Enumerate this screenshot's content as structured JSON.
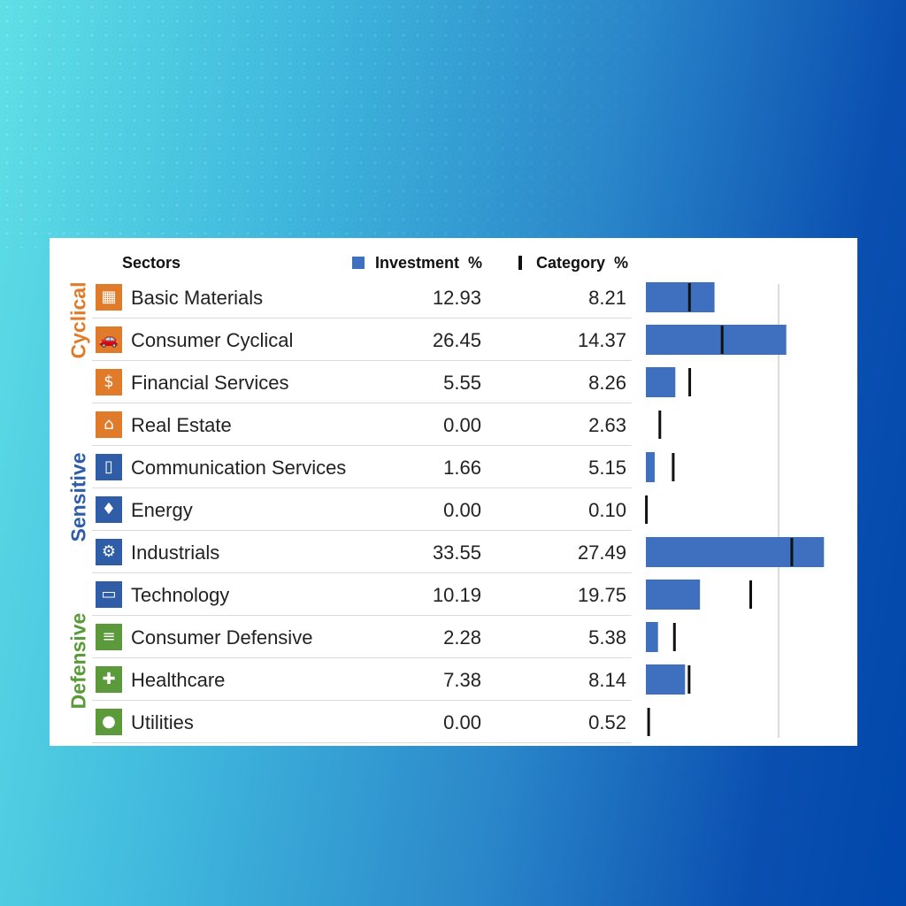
{
  "header": {
    "sectors": "Sectors",
    "investment": "Investment  %",
    "category": "Category  %"
  },
  "colors": {
    "cyclical": "#e07b2a",
    "sensitive": "#2f5da8",
    "defensive": "#5a9a3a",
    "bar": "#3f6fbf",
    "marker": "#111111"
  },
  "groups": [
    {
      "label": "Cyclical",
      "color": "#e07b2a"
    },
    {
      "label": "Sensitive",
      "color": "#2f5da8"
    },
    {
      "label": "Defensive",
      "color": "#5a9a3a"
    }
  ],
  "rows": [
    {
      "name": "Basic Materials",
      "investment": "12.93",
      "category": "8.21",
      "icon": "bricks-icon",
      "group": 0
    },
    {
      "name": "Consumer Cyclical",
      "investment": "26.45",
      "category": "14.37",
      "icon": "car-icon",
      "group": 0
    },
    {
      "name": "Financial Services",
      "investment": "5.55",
      "category": "8.26",
      "icon": "money-icon",
      "group": 0
    },
    {
      "name": "Real Estate",
      "investment": "0.00",
      "category": "2.63",
      "icon": "house-icon",
      "group": 0
    },
    {
      "name": "Communication Services",
      "investment": "1.66",
      "category": "5.15",
      "icon": "phone-icon",
      "group": 1
    },
    {
      "name": "Energy",
      "investment": "0.00",
      "category": "0.10",
      "icon": "flame-icon",
      "group": 1
    },
    {
      "name": "Industrials",
      "investment": "33.55",
      "category": "27.49",
      "icon": "gear-icon",
      "group": 1
    },
    {
      "name": "Technology",
      "investment": "10.19",
      "category": "19.75",
      "icon": "computer-icon",
      "group": 1
    },
    {
      "name": "Consumer Defensive",
      "investment": "2.28",
      "category": "5.38",
      "icon": "cart-icon",
      "group": 2
    },
    {
      "name": "Healthcare",
      "investment": "7.38",
      "category": "8.14",
      "icon": "cross-icon",
      "group": 2
    },
    {
      "name": "Utilities",
      "investment": "0.00",
      "category": "0.52",
      "icon": "bulb-icon",
      "group": 2
    }
  ],
  "chart_data": {
    "type": "bar",
    "orientation": "horizontal",
    "categories": [
      "Basic Materials",
      "Consumer Cyclical",
      "Financial Services",
      "Real Estate",
      "Communication Services",
      "Energy",
      "Industrials",
      "Technology",
      "Consumer Defensive",
      "Healthcare",
      "Utilities"
    ],
    "series": [
      {
        "name": "Investment  %",
        "mark": "bar",
        "values": [
          12.93,
          26.45,
          5.55,
          0.0,
          1.66,
          0.0,
          33.55,
          10.19,
          2.28,
          7.38,
          0.0
        ]
      },
      {
        "name": "Category  %",
        "mark": "tick",
        "values": [
          8.21,
          14.37,
          8.26,
          2.63,
          5.15,
          0.1,
          27.49,
          19.75,
          5.38,
          8.14,
          0.52
        ]
      }
    ],
    "xlim": [
      0,
      34
    ],
    "reference_line": 25,
    "grid": false,
    "legend": "top"
  }
}
